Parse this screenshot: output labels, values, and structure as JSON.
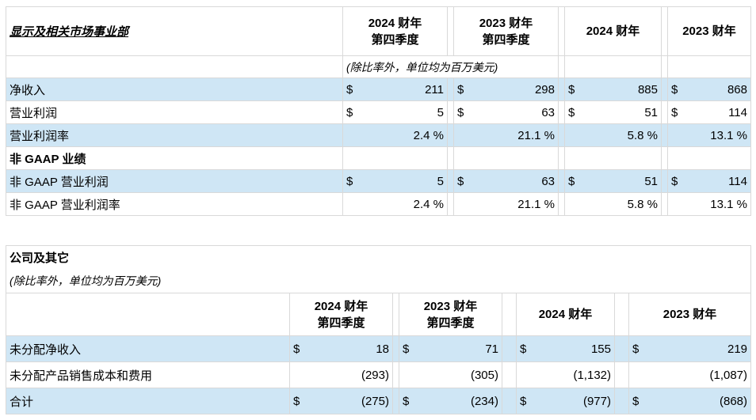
{
  "top": {
    "title": "显示及相关市场事业部",
    "unit_note": "(除比率外，单位均为百万美元)",
    "columns": [
      {
        "line1": "2024 财年",
        "line2": "第四季度"
      },
      {
        "line1": "2023 财年",
        "line2": "第四季度"
      },
      {
        "line1": "2024 财年",
        "line2": ""
      },
      {
        "line1": "2023 财年",
        "line2": ""
      }
    ],
    "rows": [
      {
        "label": "净收入",
        "dollar": true,
        "values": [
          "211",
          "298",
          "885",
          "868"
        ],
        "shaded": true
      },
      {
        "label": "营业利润",
        "dollar": true,
        "values": [
          "5",
          "63",
          "51",
          "114"
        ],
        "shaded": false
      },
      {
        "label": "营业利润率",
        "dollar": false,
        "values": [
          "2.4 %",
          "21.1 %",
          "5.8 %",
          "13.1 %"
        ],
        "shaded": true
      },
      {
        "label": "非 GAAP 业绩",
        "dollar": false,
        "values": [
          "",
          "",
          "",
          ""
        ],
        "shaded": false,
        "bold": true
      },
      {
        "label": "非 GAAP 营业利润",
        "dollar": true,
        "values": [
          "5",
          "63",
          "51",
          "114"
        ],
        "shaded": true
      },
      {
        "label": "非 GAAP 营业利润率",
        "dollar": false,
        "values": [
          "2.4 %",
          "21.1 %",
          "5.8 %",
          "13.1 %"
        ],
        "shaded": false
      }
    ],
    "currency_symbol": "$"
  },
  "bottom": {
    "title": "公司及其它",
    "unit_note": "(除比率外，单位均为百万美元)",
    "columns": [
      {
        "line1": "2024 财年",
        "line2": "第四季度"
      },
      {
        "line1": "2023 财年",
        "line2": "第四季度"
      },
      {
        "line1": "2024 财年",
        "line2": ""
      },
      {
        "line1": "2023 财年",
        "line2": ""
      }
    ],
    "rows": [
      {
        "label": "未分配净收入",
        "dollar": true,
        "values": [
          "18",
          "71",
          "155",
          "219"
        ],
        "shaded": true
      },
      {
        "label": "未分配产品销售成本和费用",
        "dollar": false,
        "values": [
          "(293)",
          "(305)",
          "(1,132)",
          "(1,087)"
        ],
        "shaded": false
      },
      {
        "label": "合计",
        "dollar": true,
        "values": [
          "(275)",
          "(234)",
          "(977)",
          "(868)"
        ],
        "shaded": true
      }
    ],
    "currency_symbol": "$"
  }
}
